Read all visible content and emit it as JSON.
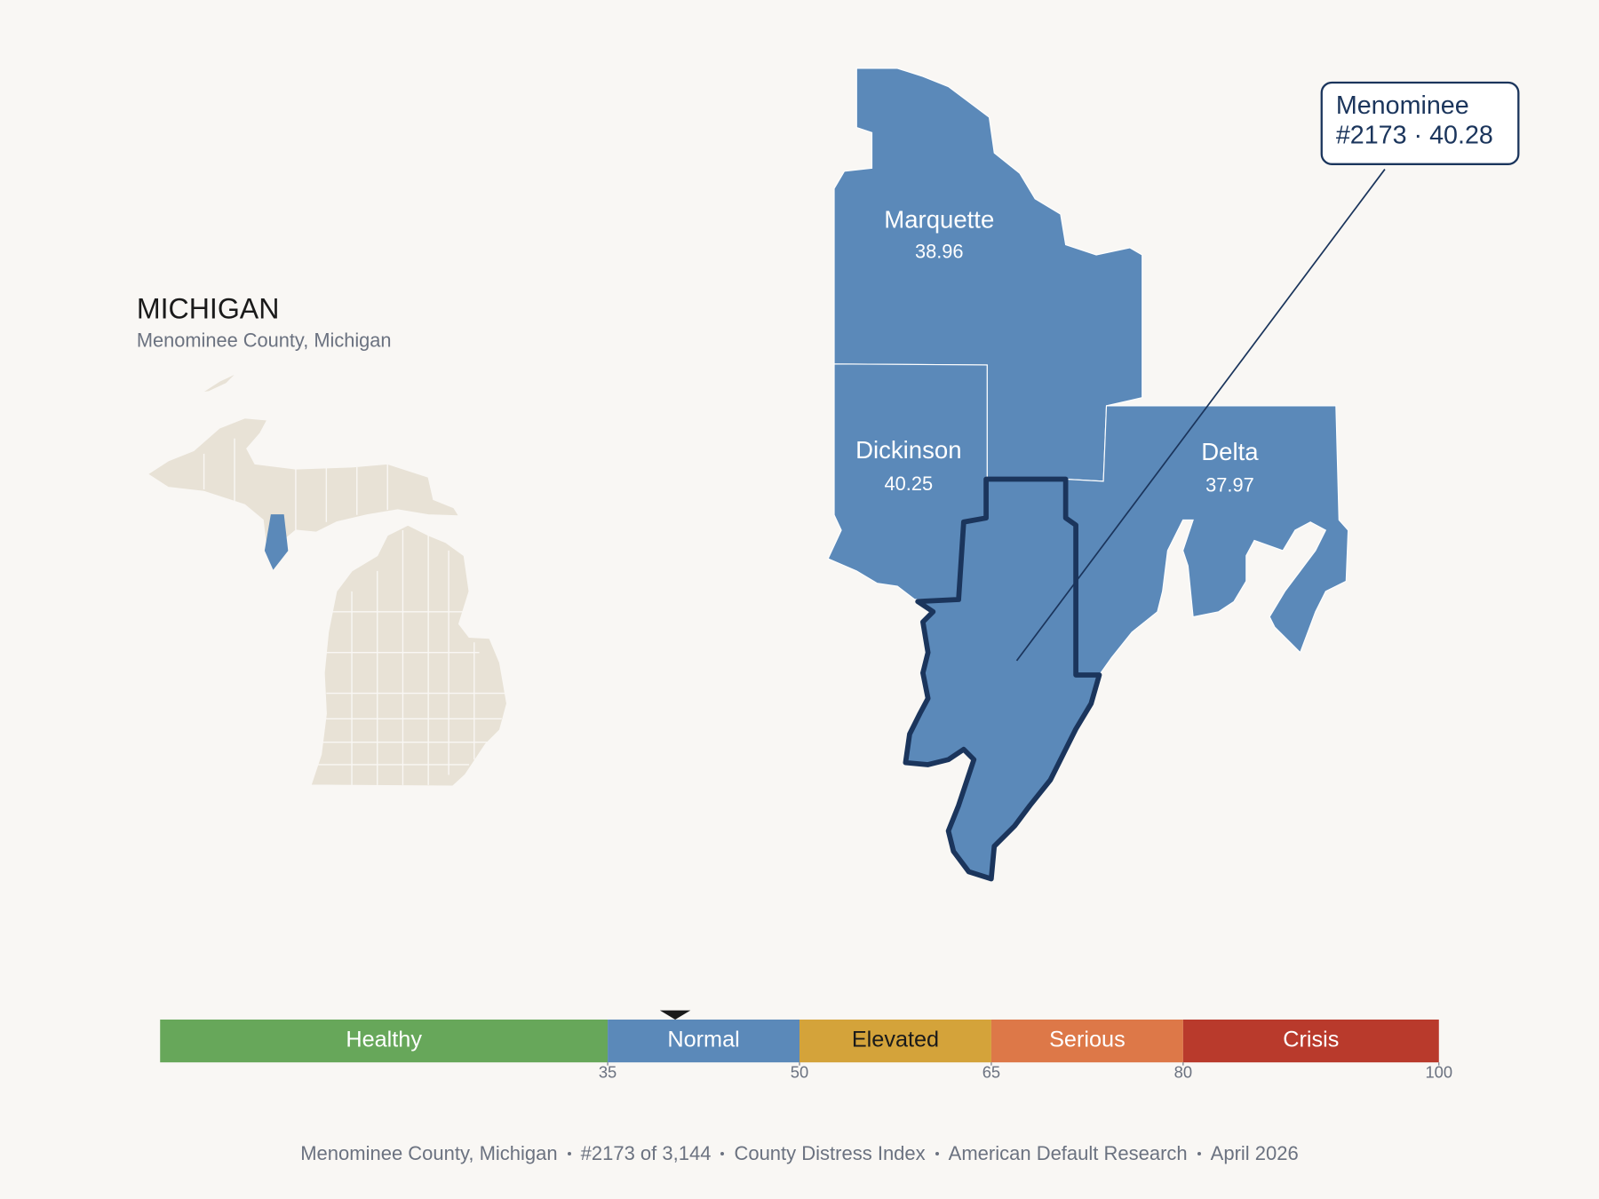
{
  "header": {
    "title": "MICHIGAN",
    "subtitle": "Menominee County, Michigan"
  },
  "counties": [
    {
      "name": "Marquette",
      "score": 38.96
    },
    {
      "name": "Dickinson",
      "score": 40.25
    },
    {
      "name": "Delta",
      "score": 37.97
    }
  ],
  "callout": {
    "name": "Menominee",
    "label": "#2173 · 40.28",
    "score": 40.28
  },
  "scale": {
    "lim": [
      0,
      100
    ],
    "ticks": [
      35,
      50,
      65,
      80,
      100
    ],
    "bands": [
      {
        "label": "Healthy",
        "color": "#67a75a",
        "text_color": "#ffffff"
      },
      {
        "label": "Normal",
        "color": "#5b89b9",
        "text_color": "#ffffff"
      },
      {
        "label": "Elevated",
        "color": "#d4a33a",
        "text_color": "#1a1a1a"
      },
      {
        "label": "Serious",
        "color": "#dd7848",
        "text_color": "#ffffff"
      },
      {
        "label": "Crisis",
        "color": "#b93a2c",
        "text_color": "#ffffff"
      }
    ]
  },
  "footer": [
    "Menominee County, Michigan",
    "#2173 of 3,144",
    "County Distress Index",
    "American Default Research",
    "April 2026"
  ]
}
